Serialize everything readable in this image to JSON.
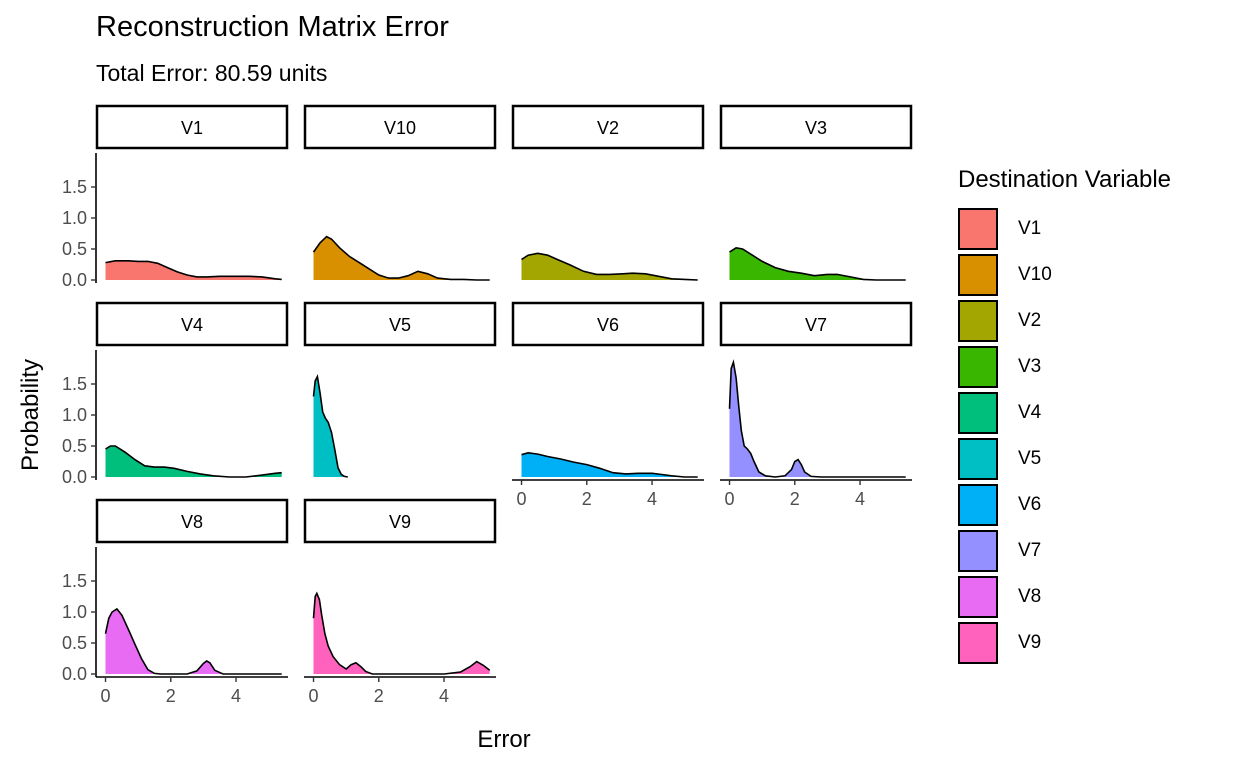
{
  "title": "Reconstruction Matrix Error",
  "subtitle": "Total Error: 80.59 units",
  "chart_data": {
    "type": "area",
    "subtype": "faceted density plot",
    "xlabel": "Error",
    "ylabel": "Probability",
    "xlim": [
      -0.2,
      5.5
    ],
    "ylim": [
      0,
      2.0
    ],
    "x_ticks": [
      0,
      2,
      4
    ],
    "y_ticks": [
      0.0,
      0.5,
      1.0,
      1.5
    ],
    "x_tick_labels": [
      "0",
      "2",
      "4"
    ],
    "y_tick_labels": [
      "0.0",
      "0.5",
      "1.0",
      "1.5"
    ],
    "grid": false,
    "legend": {
      "title": "Destination Variable",
      "placement": "right",
      "entries": [
        "V1",
        "V10",
        "V2",
        "V3",
        "V4",
        "V5",
        "V6",
        "V7",
        "V8",
        "V9"
      ]
    },
    "panels": [
      {
        "name": "V1",
        "color": "#F8766D",
        "x": [
          0,
          0.3,
          0.7,
          1.0,
          1.3,
          1.6,
          1.9,
          2.2,
          2.5,
          2.8,
          3.1,
          3.5,
          4.0,
          4.4,
          4.8,
          5.2,
          5.4
        ],
        "y": [
          0.28,
          0.31,
          0.31,
          0.3,
          0.3,
          0.27,
          0.2,
          0.13,
          0.08,
          0.05,
          0.05,
          0.06,
          0.06,
          0.06,
          0.05,
          0.02,
          0.01
        ]
      },
      {
        "name": "V10",
        "color": "#D89000",
        "x": [
          0,
          0.2,
          0.4,
          0.55,
          0.8,
          1.1,
          1.4,
          1.7,
          2.0,
          2.3,
          2.6,
          2.9,
          3.2,
          3.5,
          3.8,
          4.2,
          4.6,
          5.0,
          5.4
        ],
        "y": [
          0.45,
          0.6,
          0.7,
          0.66,
          0.52,
          0.38,
          0.28,
          0.18,
          0.08,
          0.03,
          0.03,
          0.07,
          0.14,
          0.1,
          0.03,
          0.01,
          0.01,
          0.0,
          0.0
        ]
      },
      {
        "name": "V2",
        "color": "#A3A500",
        "x": [
          0,
          0.2,
          0.5,
          0.8,
          1.1,
          1.5,
          1.9,
          2.3,
          2.7,
          3.1,
          3.4,
          3.8,
          4.2,
          4.6,
          5.0,
          5.4
        ],
        "y": [
          0.33,
          0.4,
          0.43,
          0.4,
          0.33,
          0.24,
          0.14,
          0.09,
          0.09,
          0.1,
          0.11,
          0.1,
          0.06,
          0.02,
          0.01,
          0.0
        ]
      },
      {
        "name": "V3",
        "color": "#39B600",
        "x": [
          0,
          0.2,
          0.4,
          0.7,
          1.0,
          1.4,
          1.8,
          2.2,
          2.6,
          3.0,
          3.3,
          3.7,
          4.1,
          4.5,
          5.0,
          5.4
        ],
        "y": [
          0.45,
          0.52,
          0.5,
          0.4,
          0.3,
          0.2,
          0.14,
          0.11,
          0.07,
          0.09,
          0.09,
          0.05,
          0.01,
          0.0,
          0.0,
          0.0
        ]
      },
      {
        "name": "V4",
        "color": "#00BF7D",
        "x": [
          0,
          0.15,
          0.3,
          0.6,
          0.9,
          1.2,
          1.5,
          1.8,
          2.1,
          2.5,
          2.9,
          3.3,
          3.8,
          4.3,
          4.8,
          5.2,
          5.4
        ],
        "y": [
          0.45,
          0.5,
          0.5,
          0.4,
          0.28,
          0.18,
          0.16,
          0.16,
          0.14,
          0.09,
          0.05,
          0.02,
          0.0,
          0.0,
          0.03,
          0.06,
          0.07
        ]
      },
      {
        "name": "V5",
        "color": "#00BFC4",
        "x": [
          0,
          0.05,
          0.12,
          0.2,
          0.28,
          0.36,
          0.45,
          0.55,
          0.65,
          0.75,
          0.85,
          0.95,
          1.05
        ],
        "y": [
          1.3,
          1.55,
          1.62,
          1.35,
          1.05,
          0.95,
          0.88,
          0.72,
          0.45,
          0.15,
          0.04,
          0.01,
          0.0
        ]
      },
      {
        "name": "V6",
        "color": "#00B0F6",
        "x": [
          0,
          0.2,
          0.5,
          0.8,
          1.2,
          1.6,
          2.0,
          2.4,
          2.8,
          3.2,
          3.6,
          4.0,
          4.3,
          4.6,
          5.0,
          5.4
        ],
        "y": [
          0.36,
          0.39,
          0.37,
          0.33,
          0.29,
          0.24,
          0.2,
          0.14,
          0.07,
          0.05,
          0.06,
          0.06,
          0.04,
          0.02,
          0.0,
          0.0
        ]
      },
      {
        "name": "V7",
        "color": "#9590FF",
        "x": [
          0,
          0.05,
          0.12,
          0.2,
          0.28,
          0.36,
          0.45,
          0.55,
          0.65,
          0.75,
          0.9,
          1.1,
          1.4,
          1.7,
          1.9,
          2.0,
          2.1,
          2.2,
          2.3,
          2.5,
          2.8,
          3.2,
          3.8,
          4.5,
          5.4
        ],
        "y": [
          1.1,
          1.75,
          1.85,
          1.6,
          1.15,
          0.75,
          0.5,
          0.45,
          0.38,
          0.25,
          0.08,
          0.02,
          0.0,
          0.02,
          0.12,
          0.25,
          0.28,
          0.2,
          0.08,
          0.01,
          0.0,
          0.0,
          0.0,
          0.0,
          0.0
        ]
      },
      {
        "name": "V8",
        "color": "#E76BF3",
        "x": [
          0,
          0.1,
          0.2,
          0.35,
          0.5,
          0.7,
          0.9,
          1.1,
          1.3,
          1.5,
          1.7,
          2.0,
          2.5,
          2.8,
          3.0,
          3.1,
          3.2,
          3.35,
          3.6,
          4.0,
          4.5,
          5.0,
          5.4
        ],
        "y": [
          0.65,
          0.9,
          1.0,
          1.05,
          0.95,
          0.72,
          0.48,
          0.25,
          0.07,
          0.01,
          0.0,
          0.0,
          0.0,
          0.05,
          0.17,
          0.21,
          0.18,
          0.06,
          0.0,
          0.0,
          0.0,
          0.0,
          0.0
        ]
      },
      {
        "name": "V9",
        "color": "#FF62BC",
        "x": [
          0,
          0.05,
          0.1,
          0.18,
          0.25,
          0.35,
          0.45,
          0.6,
          0.8,
          1.0,
          1.15,
          1.3,
          1.45,
          1.6,
          1.8,
          2.1,
          2.5,
          3.0,
          3.5,
          4.0,
          4.5,
          4.8,
          5.0,
          5.2,
          5.4
        ],
        "y": [
          0.9,
          1.25,
          1.3,
          1.2,
          0.95,
          0.65,
          0.45,
          0.28,
          0.15,
          0.08,
          0.15,
          0.18,
          0.12,
          0.04,
          0.0,
          0.0,
          0.0,
          0.0,
          0.0,
          0.0,
          0.03,
          0.12,
          0.2,
          0.14,
          0.06
        ]
      }
    ]
  }
}
